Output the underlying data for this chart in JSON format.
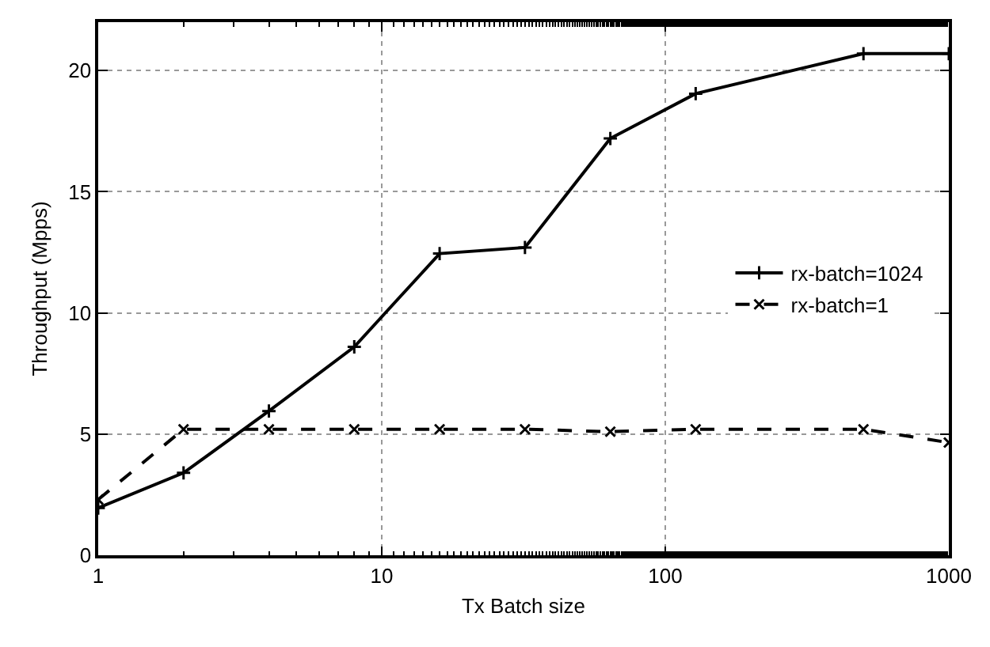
{
  "chart_data": {
    "type": "line",
    "xlabel": "Tx Batch size",
    "ylabel": "Throughput (Mpps)",
    "x": [
      1,
      2,
      4,
      8,
      16,
      32,
      64,
      128,
      500,
      1000
    ],
    "series": [
      {
        "name": "rx-batch=1024",
        "color": "#000000",
        "marker": "cross",
        "line_style": "solid",
        "values": [
          1.95,
          3.4,
          5.95,
          8.6,
          12.45,
          12.7,
          17.2,
          19.05,
          20.7,
          20.7
        ]
      },
      {
        "name": "rx-batch=1",
        "color": "#000000",
        "marker": "x",
        "line_style": "dashed",
        "values": [
          2.3,
          5.2,
          5.2,
          5.2,
          5.2,
          5.2,
          5.1,
          5.2,
          5.2,
          4.65
        ]
      }
    ],
    "log": "x",
    "xlim": [
      1,
      1000
    ],
    "xticks": [
      1,
      10,
      100,
      1000
    ],
    "ylim": [
      0,
      22
    ],
    "yticks": [
      0,
      5,
      10,
      15,
      20
    ],
    "grid": true,
    "legend": "right"
  }
}
